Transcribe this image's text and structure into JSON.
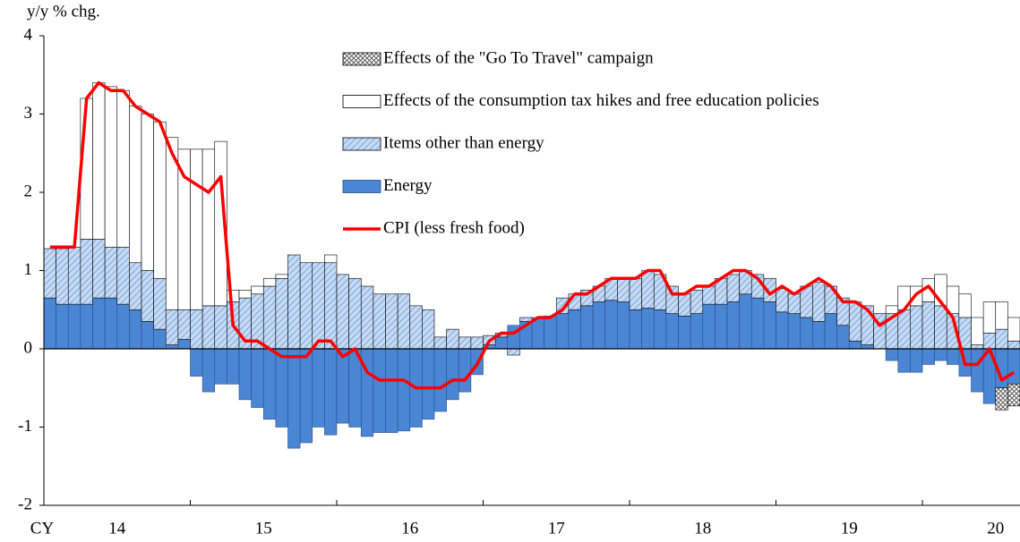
{
  "chart_data": {
    "type": "bar",
    "y_label": "y/y % chg.",
    "x_labels": [
      "CY",
      "14",
      "15",
      "16",
      "17",
      "18",
      "19",
      "20"
    ],
    "categories": [
      null,
      null,
      null,
      null,
      null,
      null,
      null,
      null,
      null,
      null,
      null,
      null,
      null,
      null,
      null,
      null,
      null,
      null,
      null,
      null,
      null,
      null,
      null,
      null,
      null,
      null,
      null,
      null,
      null,
      null,
      null,
      null,
      null,
      null,
      null,
      null,
      null,
      null,
      null,
      null,
      null,
      null,
      null,
      null,
      null,
      null,
      null,
      null,
      null,
      null,
      null,
      null,
      null,
      null,
      null,
      null,
      null,
      null,
      null,
      null,
      null,
      null,
      null,
      null,
      null,
      null,
      null,
      null,
      null,
      null,
      null,
      null,
      null,
      null,
      null,
      null,
      null,
      null,
      null,
      null
    ],
    "ylim": [
      -2,
      4
    ],
    "yticks": [
      -2,
      -1,
      0,
      1,
      2,
      3,
      4
    ],
    "series": [
      {
        "name": "Energy",
        "type": "bar",
        "pattern": "solid",
        "color": "#4a86d4",
        "values": [
          0.65,
          0.57,
          0.57,
          0.57,
          0.65,
          0.65,
          0.57,
          0.5,
          0.35,
          0.25,
          0.05,
          0.12,
          -0.35,
          -0.55,
          -0.45,
          -0.45,
          -0.65,
          -0.75,
          -0.9,
          -1.0,
          -1.27,
          -1.2,
          -1.0,
          -1.1,
          -0.95,
          -1.0,
          -1.12,
          -1.07,
          -1.07,
          -1.05,
          -1.0,
          -0.9,
          -0.8,
          -0.65,
          -0.55,
          -0.33,
          0.05,
          0.15,
          0.3,
          0.35,
          0.4,
          0.42,
          0.45,
          0.5,
          0.55,
          0.6,
          0.62,
          0.6,
          0.5,
          0.52,
          0.5,
          0.45,
          0.42,
          0.45,
          0.57,
          0.57,
          0.6,
          0.7,
          0.65,
          0.6,
          0.47,
          0.45,
          0.4,
          0.35,
          0.45,
          0.3,
          0.1,
          0.05,
          0.0,
          -0.15,
          -0.3,
          -0.3,
          -0.2,
          -0.15,
          -0.2,
          -0.35,
          -0.55,
          -0.7,
          -0.5,
          -0.45
        ]
      },
      {
        "name": "Items other than energy",
        "type": "bar",
        "pattern": "hatch",
        "color": "#c6daf2",
        "values": [
          0.63,
          0.71,
          0.73,
          0.83,
          0.75,
          0.65,
          0.73,
          0.6,
          0.65,
          0.65,
          0.45,
          0.38,
          0.5,
          0.55,
          0.55,
          0.6,
          0.65,
          0.7,
          0.8,
          0.9,
          1.2,
          1.1,
          1.1,
          1.1,
          0.95,
          0.9,
          0.8,
          0.7,
          0.7,
          0.7,
          0.55,
          0.5,
          0.15,
          0.25,
          0.15,
          0.15,
          0.12,
          0.05,
          -0.08,
          0.05,
          0,
          0,
          0.2,
          0.2,
          0.2,
          0.2,
          0.28,
          0.3,
          0.4,
          0.48,
          0.45,
          0.35,
          0.28,
          0.3,
          0.23,
          0.33,
          0.35,
          0.3,
          0.3,
          0.3,
          0.3,
          0.25,
          0.4,
          0.5,
          0.35,
          0.35,
          0.5,
          0.5,
          0.45,
          0.45,
          0.5,
          0.55,
          0.6,
          0.55,
          0.45,
          0.4,
          0.05,
          0.2,
          0.25,
          0.1
        ]
      },
      {
        "name": "Effects of the consumption tax hikes and free education policies",
        "type": "bar",
        "pattern": "solid",
        "color": "#ffffff",
        "values": [
          null,
          null,
          null,
          1.8,
          2.0,
          2.05,
          2.0,
          2.0,
          2.0,
          2.0,
          2.2,
          2.05,
          2.05,
          2.0,
          2.1,
          0.15,
          0.1,
          0.1,
          0.1,
          0.05,
          null,
          null,
          null,
          0.1,
          null,
          null,
          null,
          null,
          null,
          null,
          null,
          null,
          null,
          null,
          null,
          null,
          null,
          null,
          null,
          null,
          null,
          null,
          null,
          null,
          null,
          null,
          null,
          null,
          null,
          null,
          null,
          null,
          null,
          null,
          null,
          null,
          null,
          null,
          null,
          null,
          null,
          null,
          null,
          null,
          null,
          null,
          null,
          null,
          null,
          0.1,
          0.3,
          0.25,
          0.3,
          0.4,
          0.35,
          0.3,
          0.35,
          0.4,
          0.35,
          0.3
        ]
      },
      {
        "name": "Effects of the \"Go To Travel\" campaign",
        "type": "bar",
        "pattern": "cross",
        "color": "#ffffff",
        "values": [
          null,
          null,
          null,
          null,
          null,
          null,
          null,
          null,
          null,
          null,
          null,
          null,
          null,
          null,
          null,
          null,
          null,
          null,
          null,
          null,
          null,
          null,
          null,
          null,
          null,
          null,
          null,
          null,
          null,
          null,
          null,
          null,
          null,
          null,
          null,
          null,
          null,
          null,
          null,
          null,
          null,
          null,
          null,
          null,
          null,
          null,
          null,
          null,
          null,
          null,
          null,
          null,
          null,
          null,
          null,
          null,
          null,
          null,
          null,
          null,
          null,
          null,
          null,
          null,
          null,
          null,
          null,
          null,
          null,
          null,
          null,
          null,
          null,
          null,
          null,
          null,
          null,
          null,
          -0.28,
          -0.28
        ]
      },
      {
        "name": "CPI (less fresh food)",
        "type": "line",
        "color": "#ff0000",
        "values": [
          1.3,
          1.3,
          1.3,
          3.2,
          3.4,
          3.3,
          3.3,
          3.1,
          3.0,
          2.9,
          2.5,
          2.2,
          2.1,
          2.0,
          2.2,
          0.3,
          0.1,
          0.1,
          0.0,
          -0.1,
          -0.1,
          -0.1,
          0.1,
          0.1,
          -0.1,
          0.0,
          -0.3,
          -0.4,
          -0.4,
          -0.4,
          -0.5,
          -0.5,
          -0.5,
          -0.4,
          -0.4,
          -0.2,
          0.1,
          0.2,
          0.2,
          0.3,
          0.4,
          0.4,
          0.5,
          0.7,
          0.7,
          0.8,
          0.9,
          0.9,
          0.9,
          1.0,
          1.0,
          0.7,
          0.7,
          0.8,
          0.8,
          0.9,
          1.0,
          1.0,
          0.9,
          0.7,
          0.8,
          0.7,
          0.8,
          0.9,
          0.8,
          0.6,
          0.6,
          0.5,
          0.3,
          0.4,
          0.5,
          0.7,
          0.8,
          0.6,
          0.4,
          -0.2,
          -0.2,
          0.0,
          -0.4,
          -0.3
        ]
      }
    ],
    "legend_order": [
      3,
      2,
      1,
      0,
      4
    ]
  }
}
